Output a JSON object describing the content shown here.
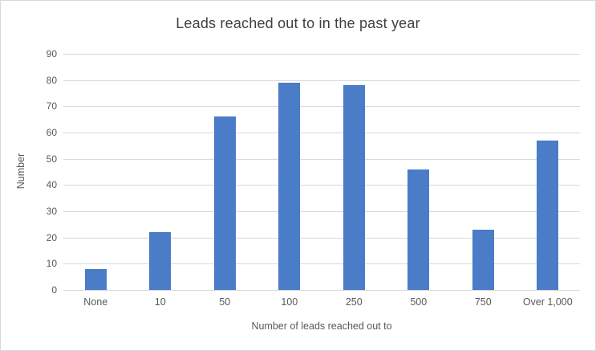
{
  "chart_data": {
    "type": "bar",
    "title": "Leads reached out to in the past year",
    "categories": [
      "None",
      "10",
      "50",
      "100",
      "250",
      "500",
      "750",
      "Over 1,000"
    ],
    "values": [
      8,
      22,
      66,
      79,
      78,
      46,
      23,
      57
    ],
    "xlabel": "Number of leads reached out to",
    "ylabel": "Number",
    "ylim": [
      0,
      90
    ],
    "ytick_step": 10,
    "yticks": [
      0,
      10,
      20,
      30,
      40,
      50,
      60,
      70,
      80,
      90
    ],
    "grid": true,
    "legend": "none",
    "colors": {
      "bar": "#4A7CC7",
      "gridline": "#D9D9D9",
      "axis_text": "#595959",
      "title_text": "#404040"
    }
  }
}
